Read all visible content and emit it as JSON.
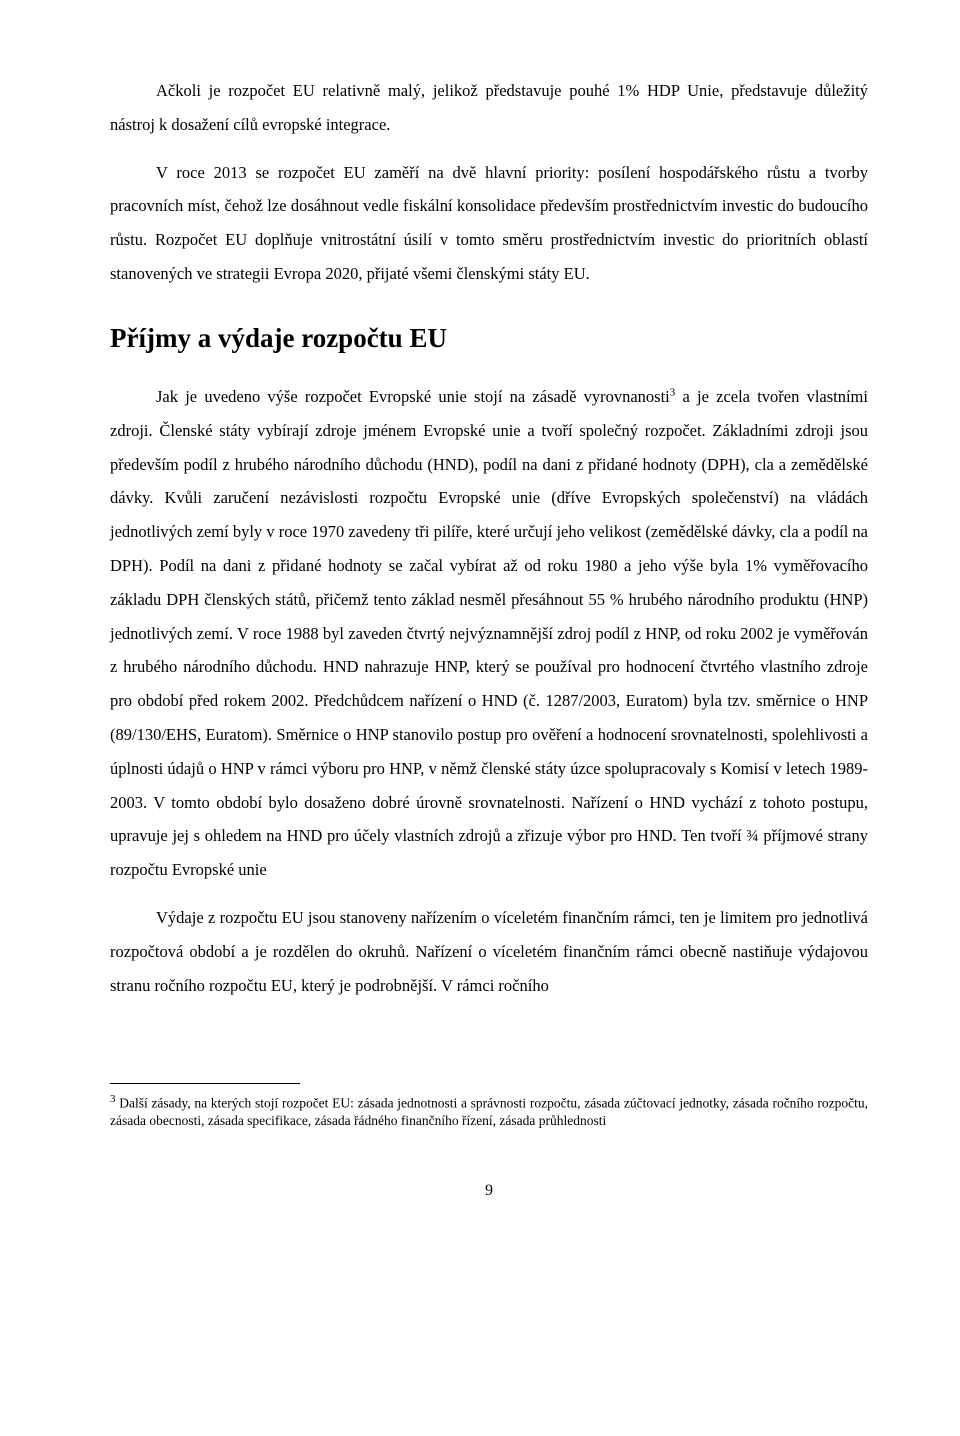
{
  "paragraphs": {
    "p1": "Ačkoli je rozpočet EU relativně malý, jelikož představuje pouhé 1% HDP Unie, představuje důležitý nástroj k dosažení cílů evropské integrace.",
    "p2": "V roce 2013 se rozpočet EU zaměří na dvě hlavní priority: posílení hospodářského růstu a tvorby pracovních míst, čehož lze dosáhnout vedle fiskální konsolidace především prostřednictvím investic do budoucího růstu. Rozpočet EU doplňuje vnitrostátní úsilí v tomto směru prostřednictvím investic do prioritních oblastí stanovených ve strategii Evropa 2020, přijaté všemi členskými státy EU.",
    "p3a": "Jak je uvedeno výše rozpočet Evropské unie stojí na zásadě vyrovnanosti",
    "p3b": " a je zcela tvořen vlastními zdroji. Členské státy vybírají zdroje jménem Evropské unie a tvoří společný rozpočet. Základními zdroji jsou především podíl z hrubého národního důchodu (HND), podíl na dani z přidané hodnoty (DPH), cla a zemědělské dávky. Kvůli zaručení nezávislosti rozpočtu Evropské unie (dříve Evropských společenství) na vládách jednotlivých zemí byly v roce 1970 zavedeny tři pilíře, které určují jeho velikost (zemědělské dávky, cla a podíl na DPH). Podíl na dani z přidané hodnoty se začal vybírat až od roku 1980 a jeho výše byla 1% vyměřovacího základu DPH členských států, přičemž tento základ nesměl přesáhnout 55 % hrubého národního produktu (HNP) jednotlivých zemí. V roce 1988 byl zaveden čtvrtý nejvýznamnější zdroj podíl z HNP, od roku 2002 je vyměřován z hrubého národního důchodu. HND nahrazuje HNP, který se používal pro hodnocení čtvrtého vlastního zdroje pro období před rokem 2002. Předchůdcem nařízení o HND (č. 1287/2003, Euratom) byla tzv. směrnice o HNP (89/130/EHS, Euratom). Směrnice o HNP stanovilo postup pro ověření a hodnocení srovnatelnosti, spolehlivosti a úplnosti údajů o HNP v rámci výboru pro HNP, v němž členské státy úzce spolupracovaly s Komisí v letech 1989-2003. V tomto období bylo dosaženo dobré úrovně srovnatelnosti. Nařízení o HND vychází z tohoto postupu, upravuje jej s ohledem na HND pro účely vlastních zdrojů a zřizuje výbor pro HND. Ten tvoří ¾ příjmové strany rozpočtu Evropské unie",
    "p4": "Výdaje z rozpočtu EU jsou stanoveny nařízením o víceletém finančním rámci, ten je limitem pro jednotlivá rozpočtová období a je rozdělen do okruhů.  Nařízení o víceletém finančním rámci obecně nastiňuje výdajovou stranu ročního rozpočtu EU, který je podrobnější. V rámci ročního"
  },
  "heading": "Příjmy a výdaje rozpočtu EU",
  "footnote": {
    "marker": "3",
    "text": " Další zásady, na kterých stojí rozpočet EU: zásada jednotnosti a správnosti rozpočtu, zásada zúčtovací jednotky, zásada ročního rozpočtu, zásada obecnosti, zásada specifikace, zásada řádného finančního řízení, zásada průhlednosti"
  },
  "page_number": "9",
  "sup_marker": "3"
}
